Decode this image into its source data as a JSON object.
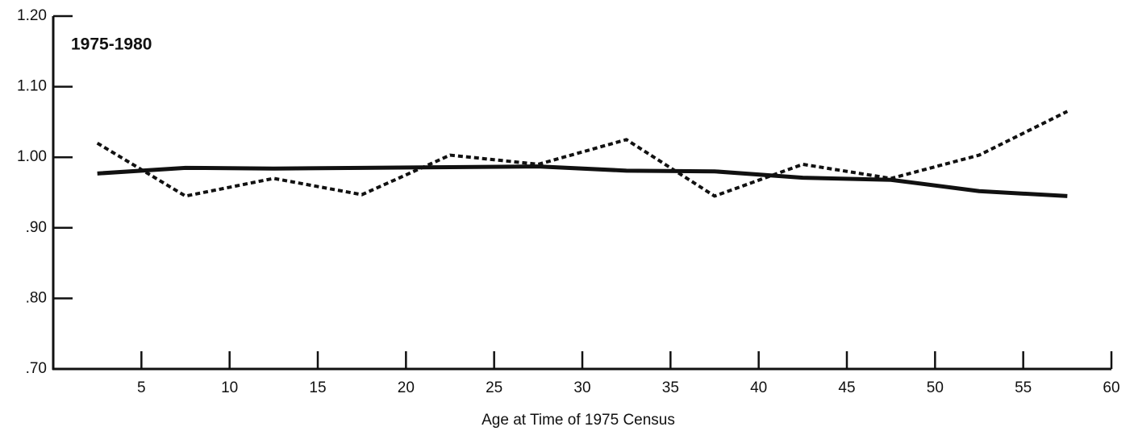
{
  "chart_data": {
    "type": "line",
    "annotation": "1975-1980",
    "x_label": "Age at Time of 1975 Census",
    "x": [
      2.5,
      7.5,
      12.5,
      17.5,
      22.5,
      27.5,
      32.5,
      37.5,
      42.5,
      47.5,
      52.5,
      57.5
    ],
    "series": [
      {
        "color": "#111111",
        "dashed": false,
        "values": [
          0.977,
          0.985,
          0.984,
          0.985,
          0.986,
          0.987,
          0.981,
          0.98,
          0.971,
          0.968,
          0.952,
          0.945
        ]
      },
      {
        "color": "#111111",
        "dashed": true,
        "values": [
          1.02,
          0.945,
          0.97,
          0.947,
          1.003,
          0.99,
          1.025,
          0.945,
          0.99,
          0.97,
          1.003,
          1.065
        ]
      }
    ],
    "xlim": [
      0,
      60
    ],
    "xticks": [
      5,
      10,
      15,
      20,
      25,
      30,
      35,
      40,
      45,
      50,
      55,
      60
    ],
    "ylim": [
      0.7,
      1.2
    ],
    "yticks": [
      {
        "value": 0.7,
        "label": ".70"
      },
      {
        "value": 0.8,
        "label": ".80"
      },
      {
        "value": 0.9,
        "label": ".90"
      },
      {
        "value": 1.0,
        "label": "1.00"
      },
      {
        "value": 1.1,
        "label": "1.10"
      },
      {
        "value": 1.2,
        "label": "1.20"
      }
    ],
    "grid": false
  }
}
